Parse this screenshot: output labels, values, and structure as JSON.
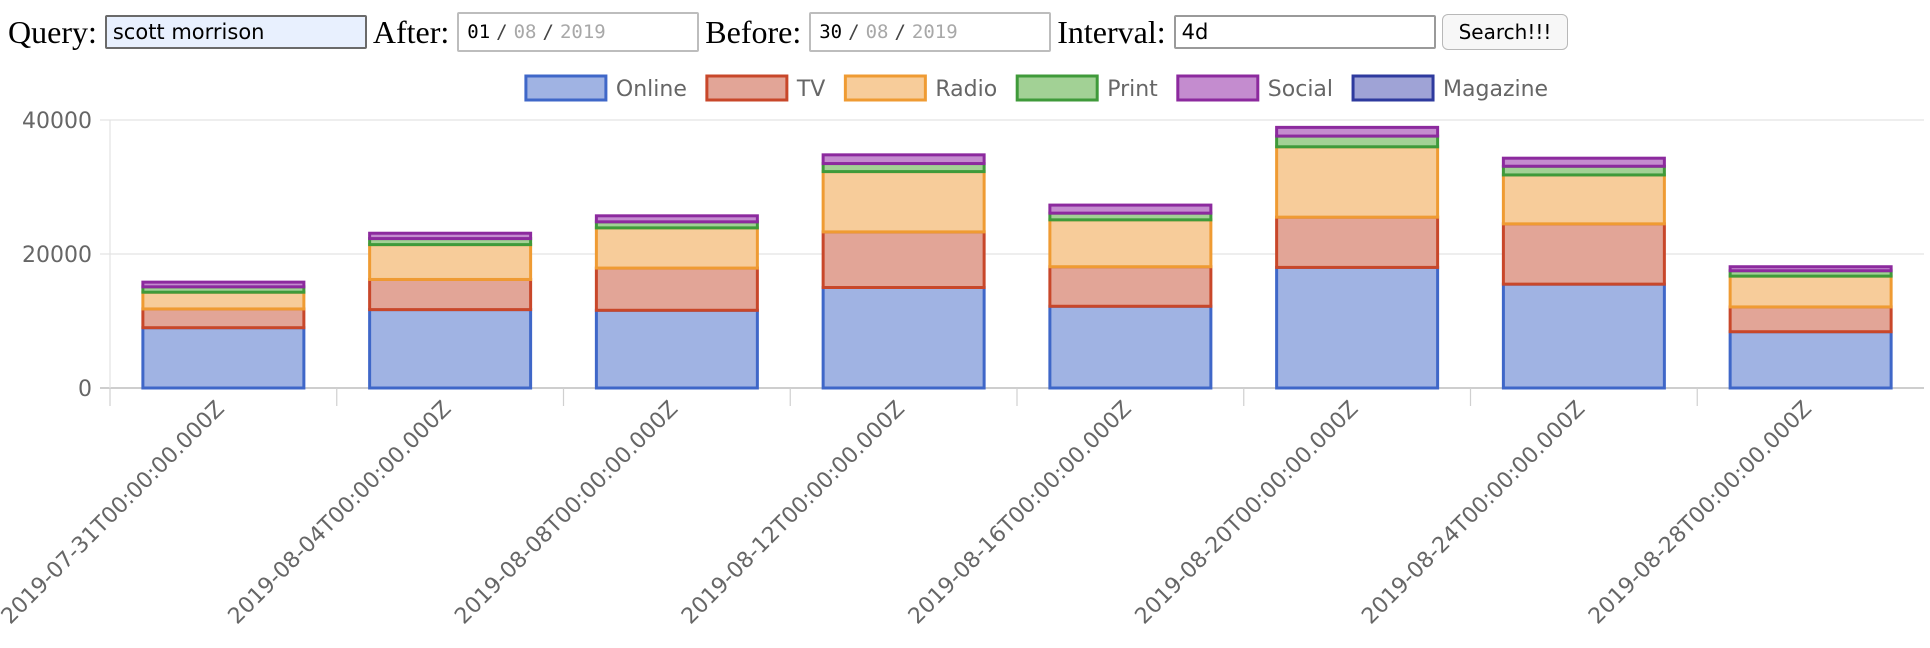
{
  "form": {
    "query_label": "Query:",
    "query_value": "scott morrison",
    "after_label": "After:",
    "after": {
      "day": "01",
      "month": "08",
      "year": "2019"
    },
    "before_label": "Before:",
    "before": {
      "day": "30",
      "month": "08",
      "year": "2019"
    },
    "interval_label": "Interval:",
    "interval_value": "4d",
    "search_label": "Search!!!"
  },
  "chart_data": {
    "type": "bar",
    "stacked": true,
    "categories": [
      "2019-07-31T00:00:00.000Z",
      "2019-08-04T00:00:00.000Z",
      "2019-08-08T00:00:00.000Z",
      "2019-08-12T00:00:00.000Z",
      "2019-08-16T00:00:00.000Z",
      "2019-08-20T00:00:00.000Z",
      "2019-08-24T00:00:00.000Z",
      "2019-08-28T00:00:00.000Z"
    ],
    "series": [
      {
        "name": "Online",
        "values": [
          9000,
          11700,
          11600,
          15000,
          12200,
          18000,
          15500,
          8400
        ],
        "fill": "#a0b3e3",
        "stroke": "#3f67c8"
      },
      {
        "name": "TV",
        "values": [
          2800,
          4500,
          6300,
          8300,
          5900,
          7500,
          9000,
          3700
        ],
        "fill": "#e2a597",
        "stroke": "#c8472a"
      },
      {
        "name": "Radio",
        "values": [
          2500,
          5200,
          6000,
          9000,
          7000,
          10500,
          7300,
          4600
        ],
        "fill": "#f7cc9a",
        "stroke": "#ef9b33"
      },
      {
        "name": "Print",
        "values": [
          800,
          900,
          900,
          1200,
          1000,
          1600,
          1300,
          800
        ],
        "fill": "#a2d195",
        "stroke": "#3f9a3a"
      },
      {
        "name": "Social",
        "values": [
          700,
          800,
          900,
          1300,
          1200,
          1300,
          1200,
          600
        ],
        "fill": "#c48ccf",
        "stroke": "#8c2a9e"
      },
      {
        "name": "Magazine",
        "values": [
          0,
          0,
          0,
          0,
          0,
          0,
          0,
          0
        ],
        "fill": "#9fa3d6",
        "stroke": "#2e3a9e"
      }
    ],
    "yticks": [
      0,
      20000,
      40000
    ],
    "ylim": [
      0,
      40000
    ],
    "grid": true,
    "legend": "top",
    "title": "",
    "xlabel": "",
    "ylabel": ""
  }
}
